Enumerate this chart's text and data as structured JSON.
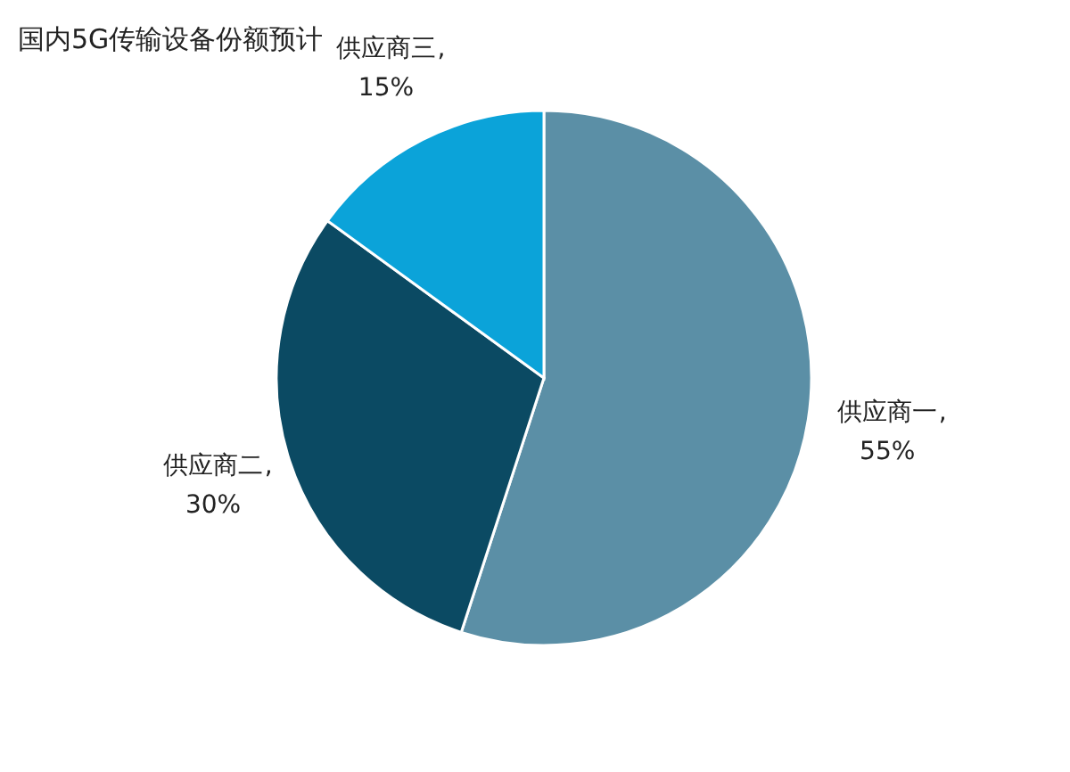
{
  "chart_data": {
    "type": "pie",
    "title": "国内5G传输设备份额预计",
    "categories": [
      "供应商一",
      "供应商二",
      "供应商三"
    ],
    "values": [
      55,
      30,
      15
    ],
    "value_labels": [
      "55%",
      "30%",
      "15%"
    ],
    "colors": [
      "#5b8fa6",
      "#0b4a63",
      "#0ba3d9"
    ],
    "annotations": [
      ",",
      ",",
      ","
    ],
    "legend": false
  }
}
